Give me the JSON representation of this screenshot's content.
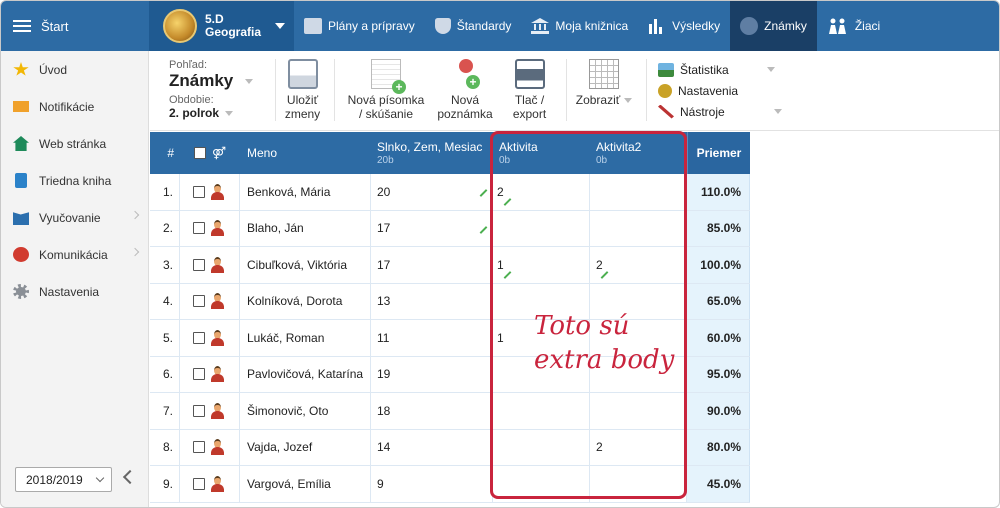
{
  "topbar": {
    "start_label": "Štart",
    "class_code": "5.D",
    "class_subject": "Geografia",
    "nav": [
      {
        "label": "Plány a prípravy",
        "icon": "folder-icon"
      },
      {
        "label": "Štandardy",
        "icon": "shield-icon"
      },
      {
        "label": "Moja knižnica",
        "icon": "library-icon"
      },
      {
        "label": "Výsledky",
        "icon": "bar-chart-icon"
      },
      {
        "label": "Známky",
        "icon": "grades-icon",
        "active": true
      },
      {
        "label": "Žiaci",
        "icon": "students-icon"
      }
    ]
  },
  "sidebar": {
    "items": [
      {
        "label": "Úvod",
        "icon": "star-icon"
      },
      {
        "label": "Notifikácie",
        "icon": "mail-icon"
      },
      {
        "label": "Web stránka",
        "icon": "home-icon"
      },
      {
        "label": "Triedna kniha",
        "icon": "book-icon"
      },
      {
        "label": "Vyučovanie",
        "icon": "teaching-icon",
        "has_submenu": true
      },
      {
        "label": "Komunikácia",
        "icon": "chat-icon",
        "has_submenu": true
      },
      {
        "label": "Nastavenia",
        "icon": "gear-icon"
      }
    ],
    "year": "2018/2019"
  },
  "toolbar": {
    "view_label": "Pohľad:",
    "view_value": "Známky",
    "period_label": "Obdobie:",
    "period_value": "2. polrok",
    "buttons": [
      {
        "l1": "Uložiť",
        "l2": "zmeny"
      },
      {
        "l1": "Nová písomka",
        "l2": "/ skúšanie"
      },
      {
        "l1": "Nová",
        "l2": "poznámka"
      },
      {
        "l1": "Tlač /",
        "l2": "export"
      },
      {
        "l1": "Zobraziť",
        "l2": ""
      }
    ],
    "right": [
      {
        "label": "Štatistika"
      },
      {
        "label": "Nastavenia"
      },
      {
        "label": "Nástroje"
      }
    ]
  },
  "grid": {
    "headers": {
      "num": "#",
      "name": "Meno",
      "col1_title": "Slnko, Zem, Mesiac",
      "col1_sub": "20b",
      "col2_title": "Aktivita",
      "col2_sub": "0b",
      "col3_title": "Aktivita2",
      "col3_sub": "0b",
      "avg": "Priemer"
    },
    "rows": [
      {
        "n": "1.",
        "name": "Benková, Mária",
        "g1": "20",
        "g2": "2",
        "g3": "",
        "avg": "110.0%"
      },
      {
        "n": "2.",
        "name": "Blaho, Ján",
        "g1": "17",
        "g2": "",
        "g3": "",
        "avg": "85.0%"
      },
      {
        "n": "3.",
        "name": "Cibuľková, Viktória",
        "g1": "17",
        "g2": "1",
        "g3": "2",
        "avg": "100.0%"
      },
      {
        "n": "4.",
        "name": "Kolníková, Dorota",
        "g1": "13",
        "g2": "",
        "g3": "",
        "avg": "65.0%"
      },
      {
        "n": "5.",
        "name": "Lukáč, Roman",
        "g1": "11",
        "g2": "1",
        "g3": "",
        "avg": "60.0%"
      },
      {
        "n": "6.",
        "name": "Pavlovičová, Katarína",
        "g1": "19",
        "g2": "",
        "g3": "",
        "avg": "95.0%"
      },
      {
        "n": "7.",
        "name": "Šimonovič, Oto",
        "g1": "18",
        "g2": "",
        "g3": "",
        "avg": "90.0%"
      },
      {
        "n": "8.",
        "name": "Vajda, Jozef",
        "g1": "14",
        "g2": "",
        "g3": "2",
        "avg": "80.0%"
      },
      {
        "n": "9.",
        "name": "Vargová, Emília",
        "g1": "9",
        "g2": "",
        "g3": "",
        "avg": "45.0%"
      }
    ]
  },
  "annotation": {
    "line1": "Toto sú",
    "line2": "extra body",
    "color": "#c9243d"
  }
}
